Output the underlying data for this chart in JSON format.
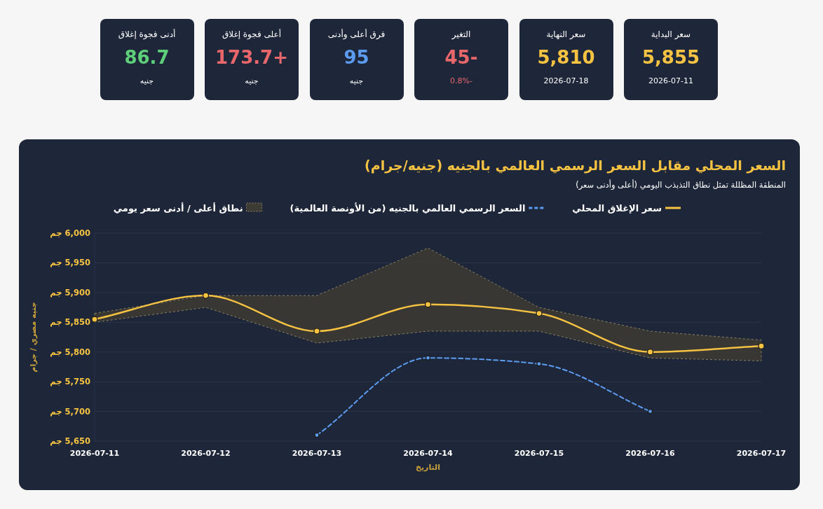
{
  "chart_data": [
    {
      "type": "other",
      "categories": [
        "سعر البداية",
        "سعر النهاية",
        "التغير",
        "فرق أعلى وأدنى",
        "أعلى فجوة إغلاق",
        "أدنى فجوة إغلاق"
      ],
      "values": [
        5855,
        5810,
        -45,
        95,
        173.7,
        86.7
      ],
      "value_labels": [
        "5,855",
        "5,810",
        "-45",
        "95",
        "+173.7",
        "86.7"
      ],
      "annotations": [
        "2026-07-11",
        "2026-07-18",
        "-0.8%",
        "جنيه",
        "جنيه",
        "جنيه"
      ]
    },
    {
      "type": "line",
      "title": "السعر المحلي مقابل السعر الرسمي العالمي بالجنيه (جنيه/جرام)",
      "subtitle": "المنطقة المظللة تمثل نطاق التذبذب اليومي (أعلى وأدنى سعر)",
      "xlabel": "التاريخ",
      "ylabel": "جنيه مصري / جرام",
      "annotations": [
        "نطاق أعلى / أدنى سعر يومي"
      ],
      "x": [
        "2026-07-11",
        "2026-07-12",
        "2026-07-13",
        "2026-07-14",
        "2026-07-15",
        "2026-07-16",
        "2026-07-17"
      ],
      "xlim": [
        "2026-07-11",
        "2026-07-17"
      ],
      "xticks": [
        "2026-07-11",
        "2026-07-12",
        "2026-07-13",
        "2026-07-14",
        "2026-07-15",
        "2026-07-16",
        "2026-07-17"
      ],
      "ylim": [
        5650,
        6000
      ],
      "yticks": [
        {
          "value": 5650,
          "label": "5,650 جم"
        },
        {
          "value": 5700,
          "label": "5,700 جم"
        },
        {
          "value": 5750,
          "label": "5,750 جم"
        },
        {
          "value": 5800,
          "label": "5,800 جم"
        },
        {
          "value": 5850,
          "label": "5,850 جم"
        },
        {
          "value": 5900,
          "label": "5,900 جم"
        },
        {
          "value": 5950,
          "label": "5,950 جم"
        },
        {
          "value": 6000,
          "label": "6,000 جم"
        }
      ],
      "grid": "y",
      "legend": "top",
      "series": [
        {
          "name": "سعر الإغلاق المحلي",
          "type": "line",
          "color": "#f5c242",
          "line_style": "solid",
          "marker": "circle",
          "values": [
            5855,
            5895,
            5835,
            5880,
            5865,
            5800,
            5810
          ],
          "lower": [
            5850,
            5875,
            5815,
            5835,
            5835,
            5790,
            5785
          ],
          "upper": [
            5865,
            5895,
            5895,
            5975,
            5875,
            5835,
            5820
          ]
        },
        {
          "name": "السعر الرسمي العالمي بالجنيه (من الأونصة العالمية)",
          "type": "line",
          "color": "#5b9cf0",
          "line_style": "dashed",
          "marker": "circle",
          "values": [
            null,
            null,
            5660,
            5790,
            5780,
            5700,
            null
          ]
        }
      ]
    }
  ]
}
